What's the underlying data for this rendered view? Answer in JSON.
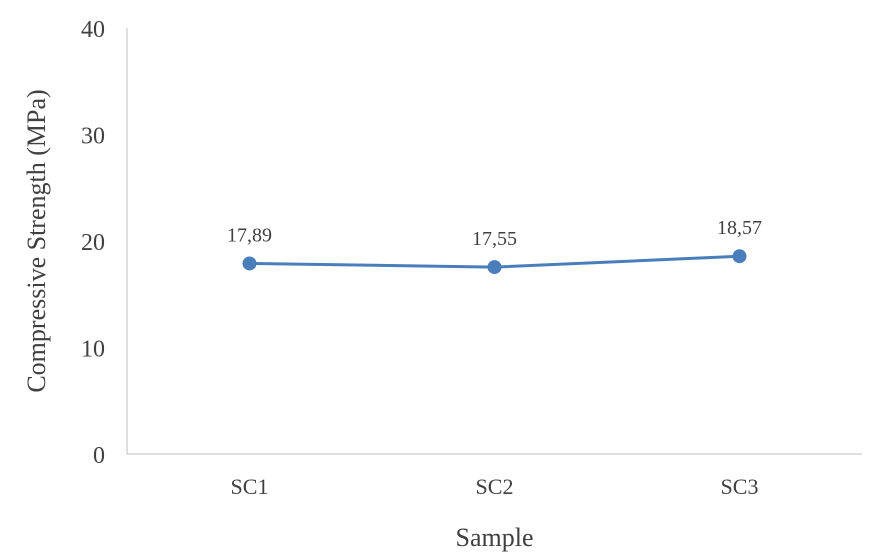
{
  "chart_data": {
    "type": "line",
    "title": "",
    "xlabel": "Sample",
    "ylabel": "Compressive Strength (MPa)",
    "categories": [
      "SC1",
      "SC2",
      "SC3"
    ],
    "series": [
      {
        "values": [
          17.89,
          17.55,
          18.57
        ],
        "data_labels": [
          "17,89",
          "17,55",
          "18,57"
        ],
        "color": "#4a7ebb"
      }
    ],
    "ylim": [
      0,
      40
    ],
    "yticks": [
      0,
      10,
      20,
      30,
      40
    ],
    "ytick_labels": [
      "0",
      "10",
      "20",
      "30",
      "40"
    ],
    "grid": false,
    "legend": "none",
    "axis_color": "#bfbfbf",
    "text_color": "#404040"
  }
}
